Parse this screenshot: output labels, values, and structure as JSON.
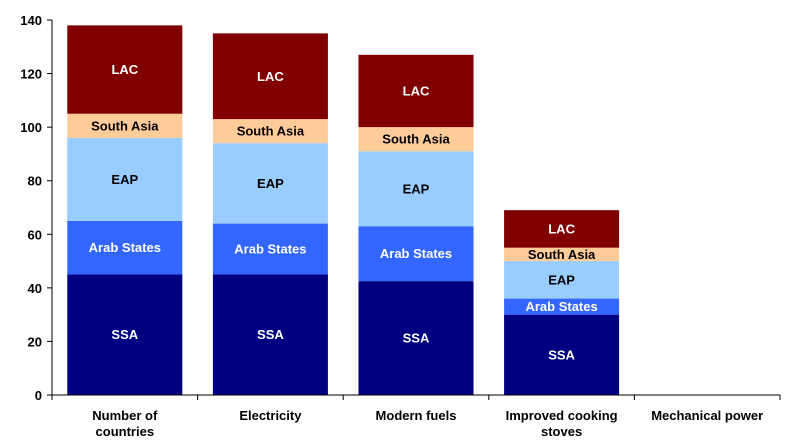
{
  "chart_data": {
    "type": "bar",
    "stacked": true,
    "categories": [
      "Number of countries",
      "Electricity",
      "Modern fuels",
      "Improved cooking stoves",
      "Mechanical power"
    ],
    "category_lines": [
      [
        "Number of",
        "countries"
      ],
      [
        "Electricity"
      ],
      [
        "Modern fuels"
      ],
      [
        "Improved cooking",
        "stoves"
      ],
      [
        "Mechanical power"
      ]
    ],
    "series": [
      {
        "name": "SSA",
        "color": "#000080",
        "label_color": "#ffffff",
        "values": [
          45,
          45,
          42.5,
          30,
          0
        ]
      },
      {
        "name": "Arab States",
        "color": "#3366ff",
        "label_color": "#ffffff",
        "values": [
          20,
          19,
          20.5,
          6,
          0
        ]
      },
      {
        "name": "EAP",
        "color": "#99ccff",
        "label_color": "#000000",
        "values": [
          31,
          30,
          28,
          14,
          0
        ]
      },
      {
        "name": "South Asia",
        "color": "#ffcc99",
        "label_color": "#000000",
        "values": [
          9,
          9,
          9,
          5,
          0
        ]
      },
      {
        "name": "LAC",
        "color": "#800000",
        "label_color": "#ffffff",
        "values": [
          33,
          32,
          27,
          14,
          0
        ]
      }
    ],
    "ylim": [
      0,
      140
    ],
    "yticks": [
      0,
      20,
      40,
      60,
      80,
      100,
      120,
      140
    ],
    "grid": false,
    "legend": "none"
  }
}
